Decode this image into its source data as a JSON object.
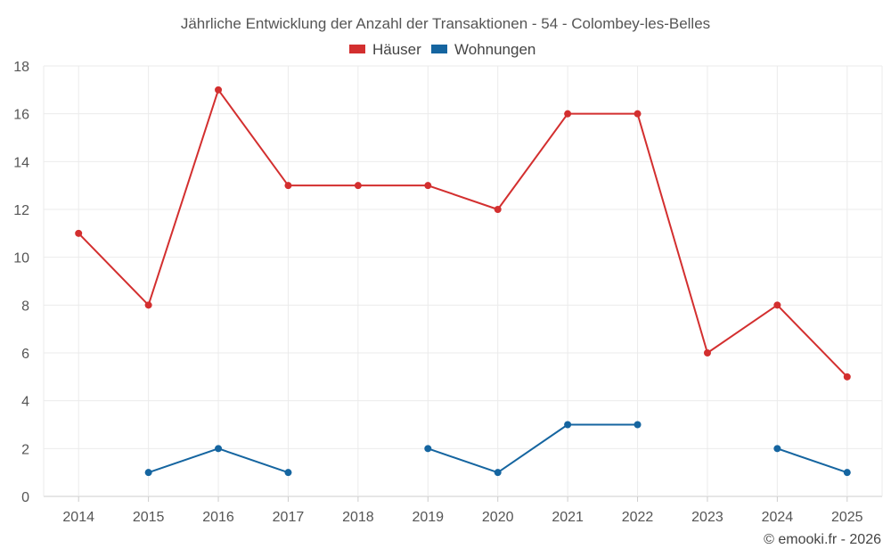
{
  "chart_data": {
    "type": "line",
    "title": "Jährliche Entwicklung der Anzahl der Transaktionen - 54 - Colombey-les-Belles",
    "x": [
      "2014",
      "2015",
      "2016",
      "2017",
      "2018",
      "2019",
      "2020",
      "2021",
      "2022",
      "2023",
      "2024",
      "2025"
    ],
    "series": [
      {
        "name": "Häuser",
        "color": "#d32f2f",
        "values": [
          11,
          8,
          17,
          13,
          13,
          13,
          12,
          16,
          16,
          6,
          8,
          5
        ]
      },
      {
        "name": "Wohnungen",
        "color": "#1565a0",
        "values": [
          null,
          1,
          2,
          1,
          null,
          2,
          1,
          3,
          3,
          null,
          2,
          1
        ]
      }
    ],
    "ylim": [
      0,
      18
    ],
    "yticks": [
      0,
      2,
      4,
      6,
      8,
      10,
      12,
      14,
      16,
      18
    ],
    "grid": true,
    "legend": "top-center",
    "xlabel": "",
    "ylabel": ""
  },
  "credit": "© emooki.fr - 2026"
}
